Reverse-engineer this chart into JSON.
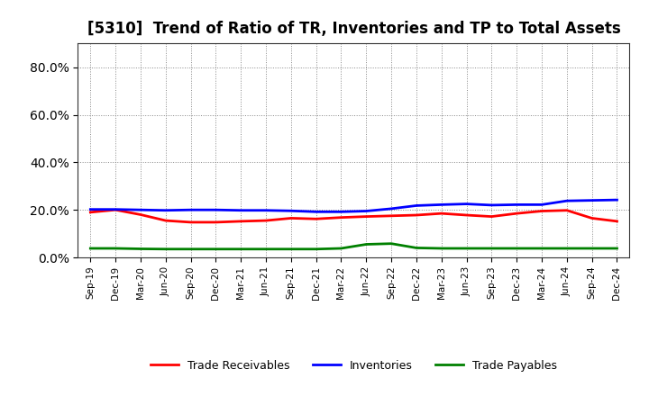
{
  "title": "[5310]  Trend of Ratio of TR, Inventories and TP to Total Assets",
  "x_labels": [
    "Sep-19",
    "Dec-19",
    "Mar-20",
    "Jun-20",
    "Sep-20",
    "Dec-20",
    "Mar-21",
    "Jun-21",
    "Sep-21",
    "Dec-21",
    "Mar-22",
    "Jun-22",
    "Sep-22",
    "Dec-22",
    "Mar-23",
    "Jun-23",
    "Sep-23",
    "Dec-23",
    "Mar-24",
    "Jun-24",
    "Sep-24",
    "Dec-24"
  ],
  "trade_receivables": [
    0.19,
    0.2,
    0.18,
    0.155,
    0.148,
    0.148,
    0.152,
    0.155,
    0.165,
    0.162,
    0.168,
    0.172,
    0.175,
    0.178,
    0.185,
    0.178,
    0.172,
    0.185,
    0.195,
    0.198,
    0.165,
    0.152
  ],
  "inventories": [
    0.202,
    0.202,
    0.2,
    0.198,
    0.2,
    0.2,
    0.198,
    0.198,
    0.196,
    0.192,
    0.192,
    0.195,
    0.205,
    0.218,
    0.222,
    0.225,
    0.22,
    0.222,
    0.222,
    0.238,
    0.24,
    0.242
  ],
  "trade_payables": [
    0.038,
    0.038,
    0.036,
    0.035,
    0.035,
    0.035,
    0.035,
    0.035,
    0.035,
    0.035,
    0.038,
    0.055,
    0.058,
    0.04,
    0.038,
    0.038,
    0.038,
    0.038,
    0.038,
    0.038,
    0.038,
    0.038
  ],
  "line_colors": {
    "trade_receivables": "#FF0000",
    "inventories": "#0000FF",
    "trade_payables": "#008000"
  },
  "ylim": [
    0.0,
    0.9
  ],
  "yticks": [
    0.0,
    0.2,
    0.4,
    0.6,
    0.8
  ],
  "background_color": "#FFFFFF",
  "grid_color": "#888888",
  "line_width": 2.0,
  "legend_labels": [
    "Trade Receivables",
    "Inventories",
    "Trade Payables"
  ],
  "title_fontsize": 12,
  "ytick_fontsize": 10,
  "xtick_fontsize": 7.5
}
